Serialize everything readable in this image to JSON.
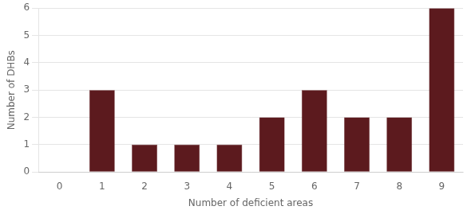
{
  "chart_data": {
    "type": "bar",
    "categories": [
      0,
      1,
      2,
      3,
      4,
      5,
      6,
      7,
      8,
      9
    ],
    "values": [
      0,
      3,
      1,
      1,
      1,
      2,
      3,
      2,
      2,
      6
    ],
    "color": "#5C1A1E",
    "xlabel": "Number of deficient areas",
    "ylabel": "Number of DHBs",
    "ylim": [
      0,
      6
    ],
    "yticks": [
      0,
      1,
      2,
      3,
      4,
      5,
      6
    ],
    "grid": true
  }
}
